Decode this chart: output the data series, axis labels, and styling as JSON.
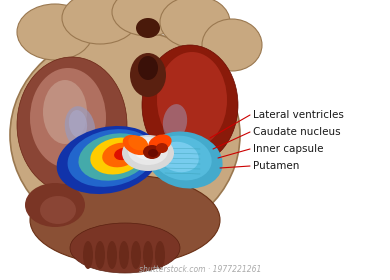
{
  "background_color": "#ffffff",
  "brain_outer_color": "#c8a880",
  "brain_edge_color": "#9a7850",
  "brain_inner_dark": "#6a2a1a",
  "brain_cavity_left": "#7a3520",
  "brain_cavity_right": "#8a2010",
  "brainstem_color": "#7a4030",
  "labels": [
    "Lateral ventricles",
    "Caudate nucleus",
    "Inner capsule",
    "Putamen"
  ],
  "label_color": "#1a1a1a",
  "label_fontsize": 7.5,
  "arrow_color": "#cc0000",
  "putamen_left_colors": [
    "#1133aa",
    "#2266bb",
    "#33aabb",
    "#ffcc00",
    "#ff6600",
    "#dd1100"
  ],
  "putamen_right_colors": [
    "#55bbcc",
    "#66ccdd",
    "#88ddee"
  ],
  "inner_capsule_color": "#e8e8e8",
  "white_center_color": "#f0f0f0",
  "caudate_color": "#ff5500",
  "dark_nucleus_color": "#7a1500",
  "watermark": "shutterstock.com · 1977221261"
}
